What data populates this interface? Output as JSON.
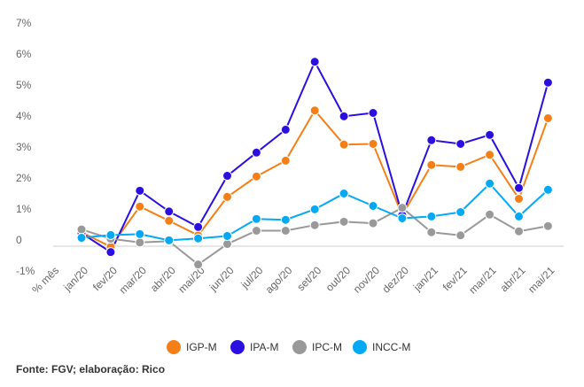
{
  "chart_data": {
    "type": "line",
    "title": "",
    "xlabel": "% mês",
    "ylabel": "",
    "ylim": [
      -1,
      7
    ],
    "yticks": [
      "-1%",
      "0",
      "1%",
      "2%",
      "3%",
      "4%",
      "5%",
      "6%",
      "7%"
    ],
    "ytick_values": [
      -1,
      0,
      1,
      2,
      3,
      4,
      5,
      6,
      7
    ],
    "categories": [
      "jan/20",
      "fev/20",
      "mar/20",
      "abr/20",
      "mai/20",
      "jun/20",
      "jul/20",
      "ago/20",
      "set/20",
      "out/20",
      "nov/20",
      "dez/20",
      "jan/21",
      "fev/21",
      "mar/21",
      "abr/21",
      "mai/21"
    ],
    "legend_position": "bottom",
    "series": [
      {
        "name": "IGP-M",
        "color": "#f57f17",
        "values": [
          0.45,
          -0.02,
          1.28,
          0.82,
          0.35,
          1.59,
          2.25,
          2.76,
          4.38,
          3.28,
          3.3,
          1.0,
          2.62,
          2.56,
          2.95,
          1.53,
          4.13
        ]
      },
      {
        "name": "IPA-M",
        "color": "#2a0fe0",
        "values": [
          0.42,
          -0.19,
          1.79,
          1.12,
          0.62,
          2.27,
          3.02,
          3.76,
          5.95,
          4.19,
          4.3,
          1.0,
          3.42,
          3.3,
          3.59,
          1.88,
          5.28
        ]
      },
      {
        "name": "IPC-M",
        "color": "#999999",
        "values": [
          0.54,
          0.24,
          0.12,
          0.16,
          -0.59,
          0.07,
          0.5,
          0.5,
          0.68,
          0.79,
          0.74,
          1.24,
          0.45,
          0.35,
          1.02,
          0.48,
          0.65
        ]
      },
      {
        "name": "INCC-M",
        "color": "#03a9f4",
        "values": [
          0.27,
          0.36,
          0.39,
          0.19,
          0.25,
          0.33,
          0.88,
          0.85,
          1.19,
          1.7,
          1.3,
          0.9,
          0.96,
          1.1,
          2.02,
          0.96,
          1.82
        ]
      }
    ]
  },
  "source": "Fonte: FGV; elaboração: Rico"
}
